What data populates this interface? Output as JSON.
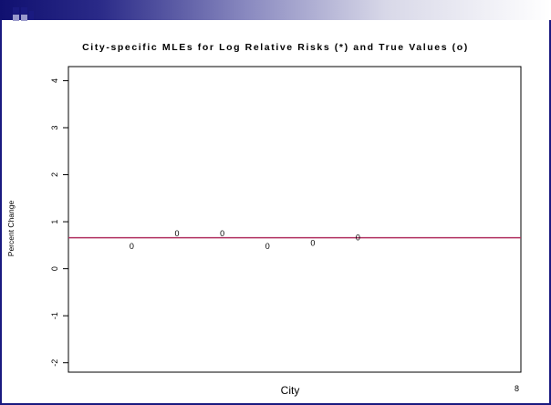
{
  "slide": {
    "page_number": "8"
  },
  "chart_data": {
    "type": "scatter",
    "title": "City-specific MLEs for Log Relative Risks (*) and True Values (o)",
    "xlabel": "City",
    "ylabel": "Percent Change",
    "ylim": [
      -2.2,
      4.3
    ],
    "xlim": [
      0,
      10
    ],
    "y_ticks": [
      4,
      3,
      2,
      1,
      0,
      -1,
      -2
    ],
    "grid": false,
    "series": [
      {
        "marker": "0",
        "points": [
          {
            "x": 1.4,
            "y": 0.48
          },
          {
            "x": 2.4,
            "y": 0.75
          },
          {
            "x": 3.4,
            "y": 0.75
          },
          {
            "x": 4.4,
            "y": 0.48
          },
          {
            "x": 5.4,
            "y": 0.55
          },
          {
            "x": 6.4,
            "y": 0.66
          }
        ]
      }
    ],
    "reference_line": {
      "y": 0.66,
      "color": "#b03060"
    }
  }
}
